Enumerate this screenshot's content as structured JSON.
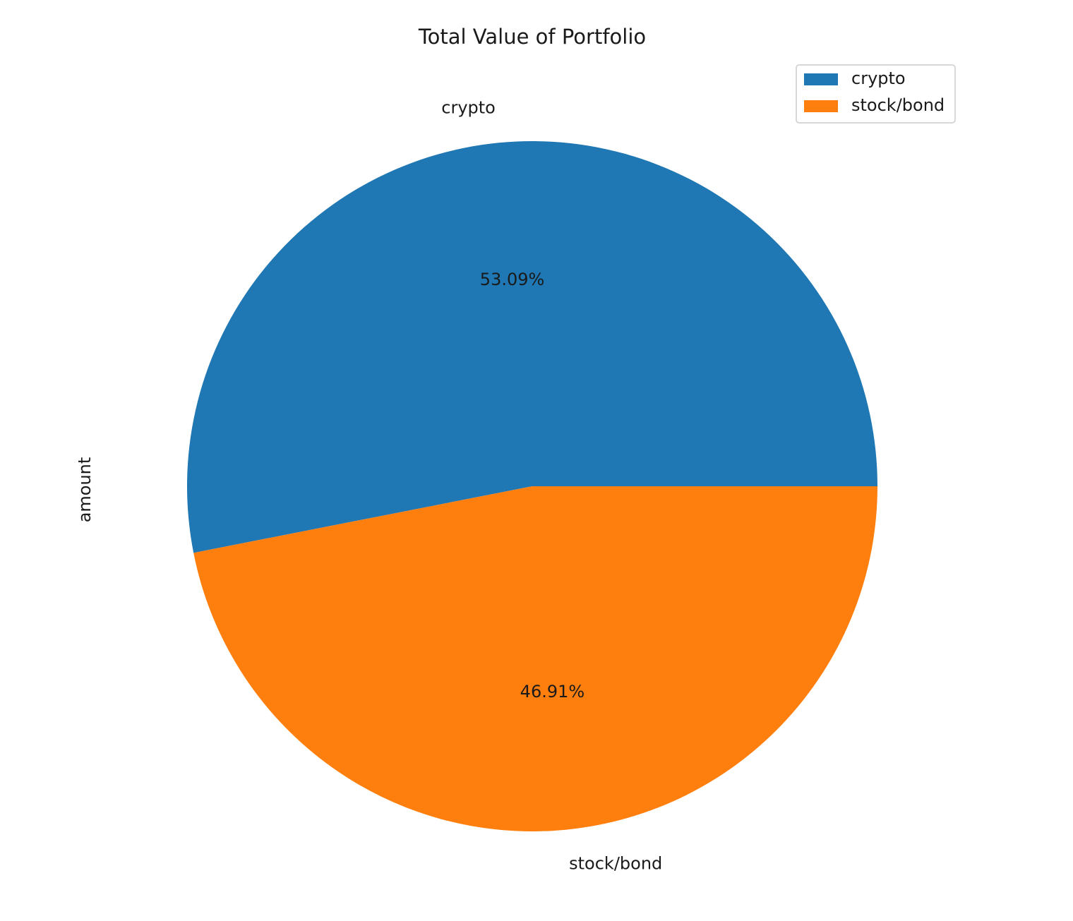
{
  "chart_data": {
    "type": "pie",
    "title": "Total Value of Portfolio",
    "ylabel": "amount",
    "categories": [
      "crypto",
      "stock/bond"
    ],
    "percentages": [
      53.09,
      46.91
    ],
    "autopct_labels": [
      "53.09%",
      "46.91%"
    ],
    "colors": [
      "#1f77b4",
      "#ff7f0e"
    ],
    "start_angle_deg": 0,
    "direction": "counterclockwise",
    "legend": {
      "placement": "upper-right",
      "entries": [
        "crypto",
        "stock/bond"
      ]
    }
  }
}
